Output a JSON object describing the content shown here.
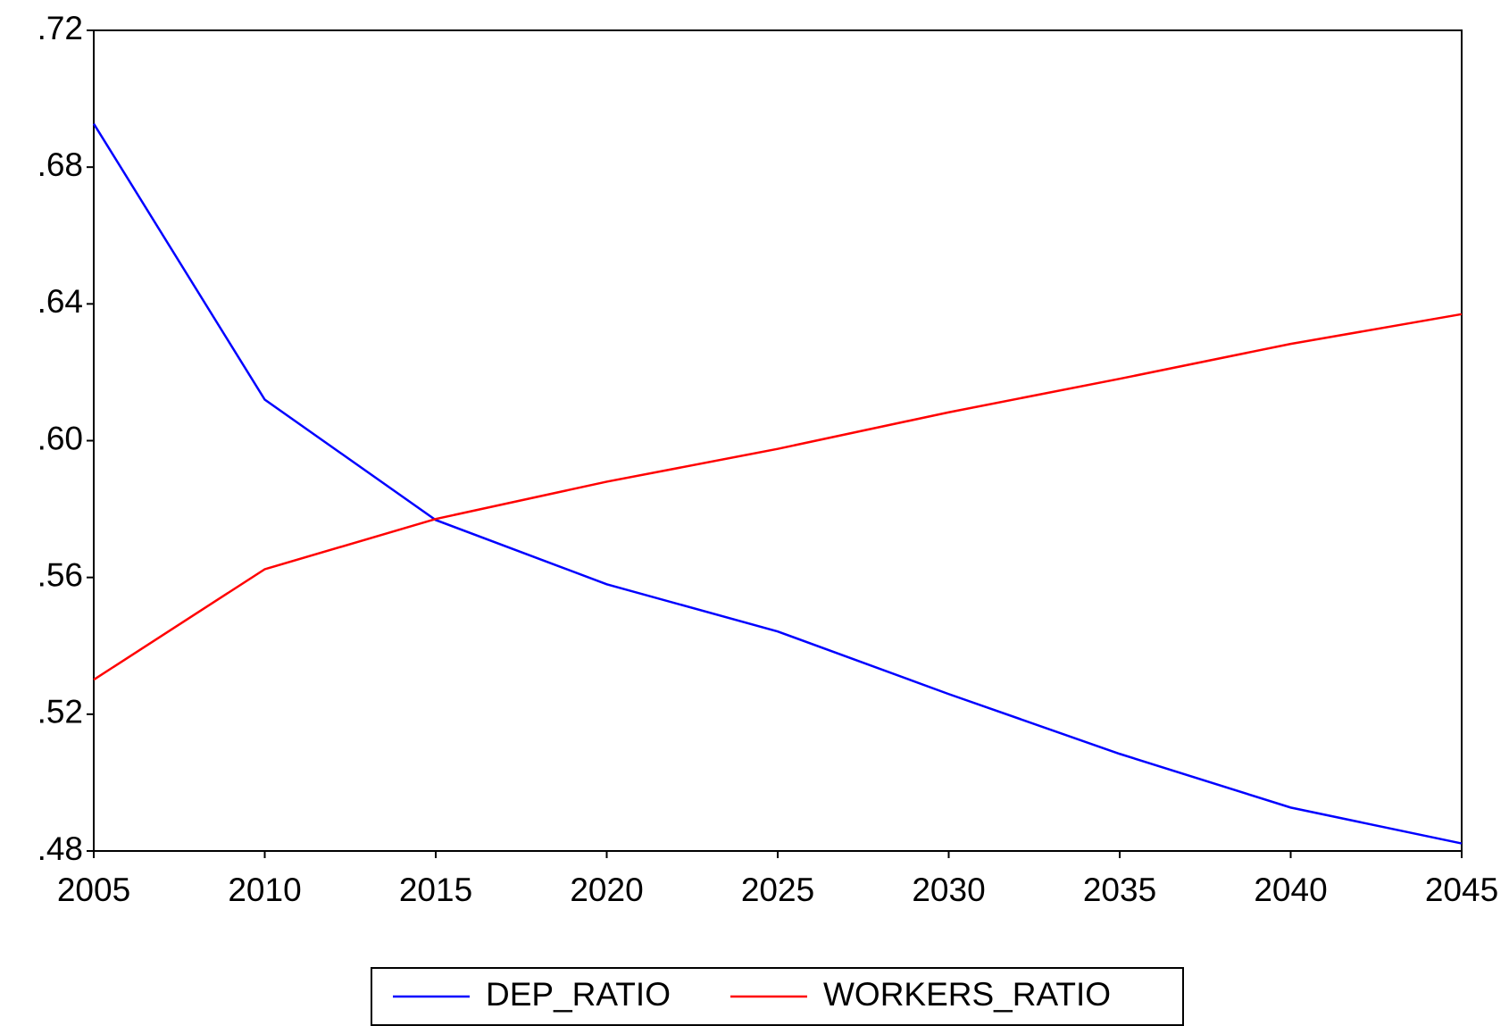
{
  "chart_data": {
    "type": "line",
    "x": [
      2005,
      2010,
      2015,
      2020,
      2025,
      2030,
      2035,
      2040,
      2045
    ],
    "series": [
      {
        "name": "DEP_RATIO",
        "color": "#0000ff",
        "values": [
          0.6927,
          0.612,
          0.5768,
          0.558,
          0.5442,
          0.5259,
          0.5084,
          0.4927,
          0.4822
        ]
      },
      {
        "name": "WORKERS_RATIO",
        "color": "#ff0000",
        "values": [
          0.5301,
          0.5624,
          0.5771,
          0.588,
          0.5976,
          0.6083,
          0.6181,
          0.6283,
          0.637
        ]
      }
    ],
    "xlim": [
      2005,
      2045
    ],
    "xticks": [
      2005,
      2010,
      2015,
      2020,
      2025,
      2030,
      2035,
      2040,
      2045
    ],
    "ylim": [
      0.48,
      0.72
    ],
    "yticks": [
      {
        "value": 0.48,
        "label": ".48"
      },
      {
        "value": 0.52,
        "label": ".52"
      },
      {
        "value": 0.56,
        "label": ".56"
      },
      {
        "value": 0.6,
        "label": ".60"
      },
      {
        "value": 0.64,
        "label": ".64"
      },
      {
        "value": 0.68,
        "label": ".68"
      },
      {
        "value": 0.72,
        "label": ".72"
      }
    ],
    "grid": false,
    "legend": "bottom"
  }
}
